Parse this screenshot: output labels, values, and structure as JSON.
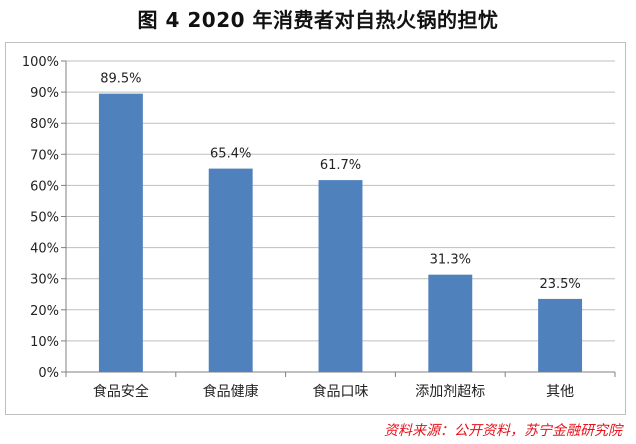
{
  "chart_data": {
    "type": "bar",
    "title": "图 4  2020 年消费者对自热火锅的担忧",
    "categories": [
      "食品安全",
      "食品健康",
      "食品口味",
      "添加剂超标",
      "其他"
    ],
    "values": [
      89.5,
      65.4,
      61.7,
      31.3,
      23.5
    ],
    "data_labels": [
      "89.5%",
      "65.4%",
      "61.7%",
      "31.3%",
      "23.5%"
    ],
    "y_ticks": [
      "0%",
      "10%",
      "20%",
      "30%",
      "40%",
      "50%",
      "60%",
      "70%",
      "80%",
      "90%",
      "100%"
    ],
    "ylim": [
      0,
      100
    ],
    "xlabel": "",
    "ylabel": "",
    "grid": true,
    "legend": "none",
    "bar_color": "#4f81bd"
  },
  "source": "资料来源：公开资料，苏宁金融研究院"
}
